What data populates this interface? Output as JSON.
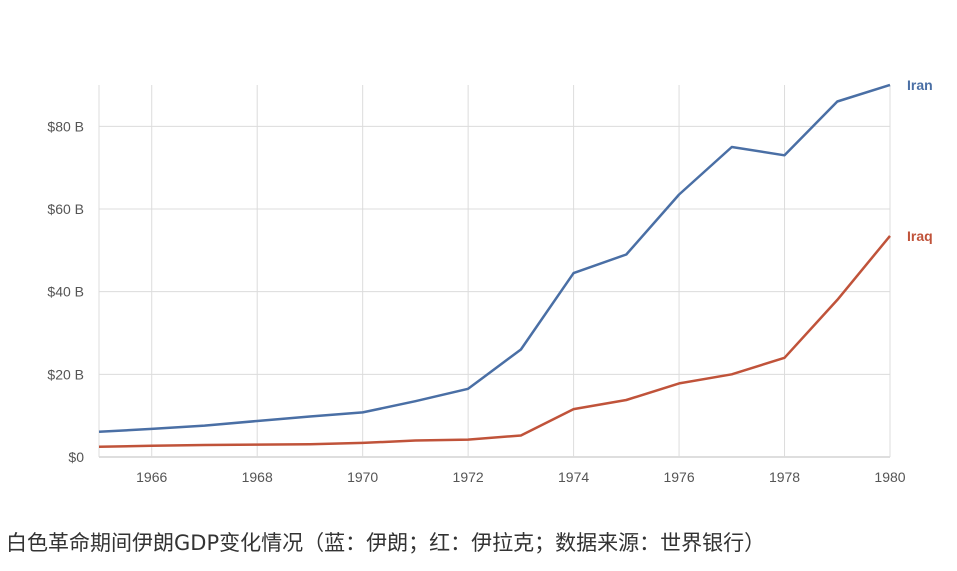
{
  "chart_data": {
    "type": "line",
    "x": [
      1965,
      1966,
      1967,
      1968,
      1969,
      1970,
      1971,
      1972,
      1973,
      1974,
      1975,
      1976,
      1977,
      1978,
      1979,
      1980
    ],
    "series": [
      {
        "name": "Iran",
        "color": "#4a6fa5",
        "values": [
          6.1,
          6.8,
          7.6,
          8.7,
          9.8,
          10.8,
          13.5,
          16.5,
          26.0,
          44.5,
          49.0,
          63.5,
          75.0,
          73.0,
          86.0,
          90.0
        ]
      },
      {
        "name": "Iraq",
        "color": "#c0533a",
        "values": [
          2.5,
          2.7,
          2.9,
          3.0,
          3.1,
          3.4,
          4.0,
          4.2,
          5.2,
          11.6,
          13.8,
          17.8,
          20.0,
          24.0,
          38.0,
          53.5
        ]
      }
    ],
    "x_ticks": [
      "1966",
      "1968",
      "1970",
      "1972",
      "1974",
      "1976",
      "1978",
      "1980"
    ],
    "y_ticks": [
      "$0",
      "$20 B",
      "$40 B",
      "$60 B",
      "$80 B"
    ],
    "ylim": [
      0,
      90
    ],
    "xlim": [
      1965,
      1980
    ],
    "grid": true,
    "legend": "inline-right"
  },
  "caption": "白色革命期间伊朗GDP变化情况（蓝：伊朗；红：伊拉克；数据来源：世界银行）"
}
